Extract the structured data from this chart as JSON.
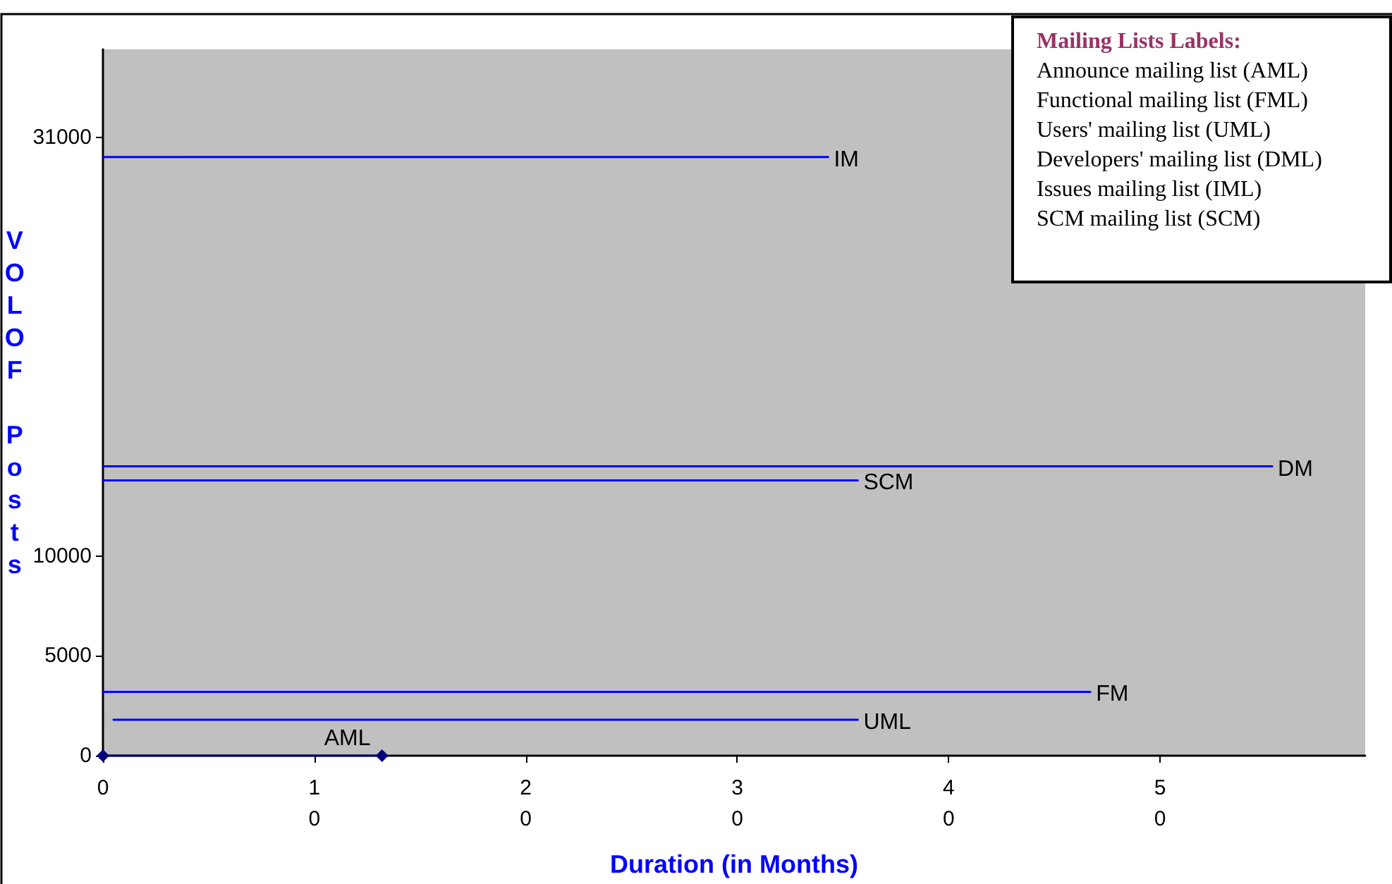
{
  "chart_data": {
    "type": "line",
    "xlabel": "Duration (in Months)",
    "ylabel": "VOLOF Posts",
    "series": [
      {
        "name": "IM",
        "color": "#0000ff",
        "x": [
          0,
          34.3
        ],
        "values": [
          30000,
          30000
        ]
      },
      {
        "name": "DM",
        "color": "#0000ff",
        "x": [
          0,
          55.3
        ],
        "values": [
          14500,
          14500
        ]
      },
      {
        "name": "SCM",
        "color": "#0000ff",
        "x": [
          0,
          35.7
        ],
        "values": [
          13800,
          13800
        ]
      },
      {
        "name": "FM",
        "color": "#0000ff",
        "x": [
          0,
          46.7
        ],
        "values": [
          3200,
          3200
        ]
      },
      {
        "name": "UML",
        "color": "#0000ff",
        "x": [
          0.5,
          35.7
        ],
        "values": [
          1800,
          1800
        ]
      },
      {
        "name": "AML",
        "color": "#000080",
        "x": [
          0,
          13.2
        ],
        "values": [
          0,
          0
        ],
        "marker": "diamond"
      }
    ],
    "xlim": [
      0,
      59.7
    ],
    "xticks": [
      0,
      10,
      20,
      30,
      40,
      50
    ],
    "ylim": [
      0,
      35400
    ],
    "yticks": [
      0,
      5000,
      10000,
      31000
    ],
    "grid": false,
    "legend": false,
    "marker": "none",
    "annotations": [
      "Mailing Lists Labels:",
      "Announce mailing list (AML)",
      "Functional mailing list (FML)",
      "Users' mailing list (UML)",
      "Developers' mailing list (DML)",
      "Issues mailing list (IML)",
      "SCM mailing list (SCM)"
    ]
  }
}
